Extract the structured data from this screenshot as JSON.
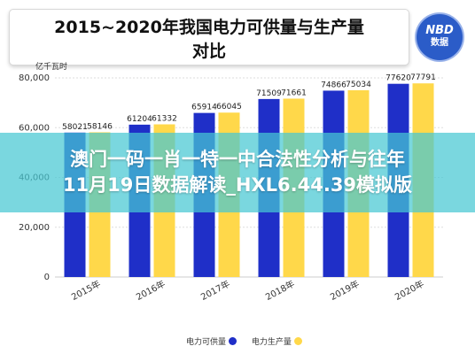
{
  "header": {
    "title_line1": "2015~2020年我国电力可供量与生产量",
    "title_line2": "对比"
  },
  "logo": {
    "line1": "NBD",
    "line2": "数据"
  },
  "overlay": {
    "line1": "澳门一码一肖一特一中合法性分析与往年",
    "line2": "11月19日数据解读_HXL6.44.39模拟版"
  },
  "chart_data": {
    "type": "bar",
    "unit_label": "亿千瓦时",
    "categories": [
      "2015年",
      "2016年",
      "2017年",
      "2018年",
      "2019年",
      "2020年"
    ],
    "series": [
      {
        "name": "电力可供量",
        "color": "#1f2fc8",
        "values": [
          58021,
          61204,
          65914,
          71509,
          74866,
          77620
        ]
      },
      {
        "name": "电力生产量",
        "color": "#ffd84a",
        "values": [
          58146,
          61332,
          66045,
          71661,
          75034,
          77791
        ]
      }
    ],
    "ylim": [
      0,
      80000
    ],
    "yticks": [
      0,
      20000,
      40000,
      60000,
      80000
    ],
    "ytick_labels": [
      "0",
      "20,000",
      "40,000",
      "60,000",
      "80,000"
    ],
    "grid": true,
    "legend": "bottom-center"
  }
}
